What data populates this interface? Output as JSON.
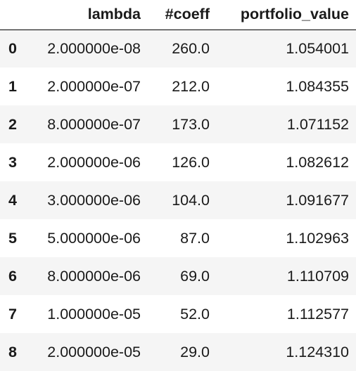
{
  "table": {
    "columns": [
      "",
      "lambda",
      "#coeff",
      "portfolio_value"
    ],
    "rows": [
      {
        "index": "0",
        "lambda": "2.000000e-08",
        "coeff": "260.0",
        "portfolio_value": "1.054001"
      },
      {
        "index": "1",
        "lambda": "2.000000e-07",
        "coeff": "212.0",
        "portfolio_value": "1.084355"
      },
      {
        "index": "2",
        "lambda": "8.000000e-07",
        "coeff": "173.0",
        "portfolio_value": "1.071152"
      },
      {
        "index": "3",
        "lambda": "2.000000e-06",
        "coeff": "126.0",
        "portfolio_value": "1.082612"
      },
      {
        "index": "4",
        "lambda": "3.000000e-06",
        "coeff": "104.0",
        "portfolio_value": "1.091677"
      },
      {
        "index": "5",
        "lambda": "5.000000e-06",
        "coeff": "87.0",
        "portfolio_value": "1.102963"
      },
      {
        "index": "6",
        "lambda": "8.000000e-06",
        "coeff": "69.0",
        "portfolio_value": "1.110709"
      },
      {
        "index": "7",
        "lambda": "1.000000e-05",
        "coeff": "52.0",
        "portfolio_value": "1.112577"
      },
      {
        "index": "8",
        "lambda": "2.000000e-05",
        "coeff": "29.0",
        "portfolio_value": "1.124310"
      }
    ]
  },
  "colors": {
    "header_border": "#000000",
    "odd_row_bg": "#f5f5f5",
    "even_row_bg": "#ffffff",
    "text": "#1a1a1a"
  }
}
